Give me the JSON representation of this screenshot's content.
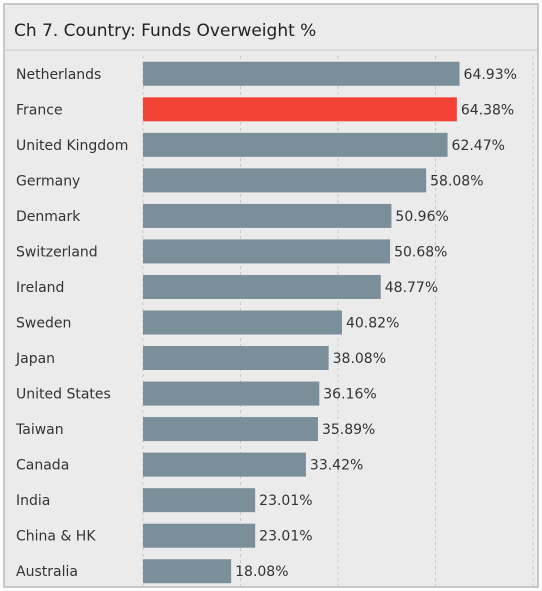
{
  "chart_data": {
    "type": "barh",
    "title": "Ch 7. Country:  Funds Overweight %",
    "categories": [
      "Netherlands",
      "France",
      "United Kingdom",
      "Germany",
      "Denmark",
      "Switzerland",
      "Ireland",
      "Sweden",
      "Japan",
      "United States",
      "Taiwan",
      "Canada",
      "India",
      "China & HK",
      "Australia"
    ],
    "values": [
      64.93,
      64.38,
      62.47,
      58.08,
      50.96,
      50.68,
      48.77,
      40.82,
      38.08,
      36.16,
      35.89,
      33.42,
      23.01,
      23.01,
      18.08
    ],
    "value_labels": [
      "64.93%",
      "64.38%",
      "62.47%",
      "58.08%",
      "50.96%",
      "50.68%",
      "48.77%",
      "40.82%",
      "38.08%",
      "36.16%",
      "35.89%",
      "33.42%",
      "23.01%",
      "23.01%",
      "18.08%"
    ],
    "colors": [
      "#7a8f9a",
      "#f44336",
      "#7a8f9a",
      "#7a8f9a",
      "#7a8f9a",
      "#7a8f9a",
      "#7a8f9a",
      "#7a8f9a",
      "#7a8f9a",
      "#7a8f9a",
      "#7a8f9a",
      "#7a8f9a",
      "#7a8f9a",
      "#7a8f9a",
      "#7a8f9a"
    ],
    "xlim": [
      0,
      80
    ],
    "xticks": [
      0,
      20,
      40,
      60,
      80
    ],
    "grid": true
  }
}
